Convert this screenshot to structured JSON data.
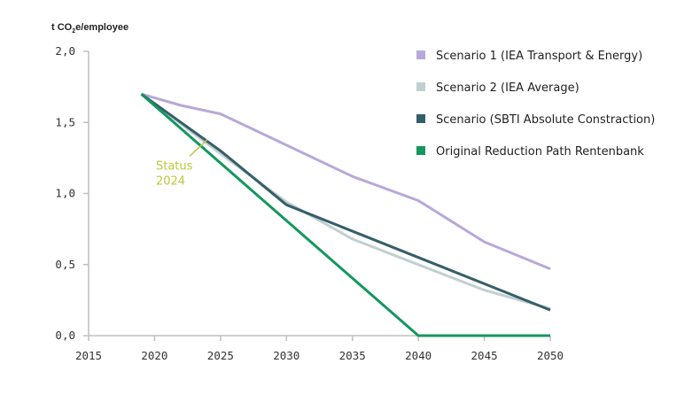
{
  "chart_data": {
    "type": "line",
    "ylabel_prefix": "t CO",
    "ylabel_sub": "2",
    "ylabel_suffix": "e/employee",
    "xlim": [
      2015,
      2050
    ],
    "ylim": [
      0,
      2.0
    ],
    "x_ticks": [
      2015,
      2020,
      2025,
      2030,
      2035,
      2040,
      2045,
      2050
    ],
    "x_tick_labels": [
      "2015",
      "2020",
      "2025",
      "2030",
      "2035",
      "2040",
      "2045",
      "2050"
    ],
    "y_ticks": [
      0,
      0.5,
      1.0,
      1.5,
      2.0
    ],
    "y_tick_labels": [
      "0,0",
      "0,5",
      "1,0",
      "1,5",
      "2,0"
    ],
    "series": [
      {
        "name": "Scenario 1 (IEA Transport & Energy)",
        "color": "#b8a8d8",
        "x": [
          2019,
          2022,
          2025,
          2030,
          2035,
          2040,
          2045,
          2050
        ],
        "values": [
          1.7,
          1.62,
          1.56,
          1.34,
          1.12,
          0.95,
          0.66,
          0.47
        ]
      },
      {
        "name": "Scenario 2 (IEA Average)",
        "color": "#c2cfd0",
        "x": [
          2019,
          2025,
          2030,
          2035,
          2040,
          2045,
          2050
        ],
        "values": [
          1.7,
          1.28,
          0.94,
          0.68,
          0.5,
          0.32,
          0.19
        ]
      },
      {
        "name": "Scenario (SBTI Absolute Constraction)",
        "color": "#345f6a",
        "x": [
          2019,
          2025,
          2030,
          2040,
          2050
        ],
        "values": [
          1.7,
          1.3,
          0.92,
          0.55,
          0.18
        ]
      },
      {
        "name": "Original Reduction Path Rentenbank",
        "color": "#14975f",
        "x": [
          2019,
          2040,
          2050
        ],
        "values": [
          1.7,
          0.0,
          0.0
        ]
      }
    ],
    "annotation": {
      "line1": "Status",
      "line2": "2024",
      "x": 2024,
      "y": 1.38,
      "color": "#b9c93a"
    }
  }
}
